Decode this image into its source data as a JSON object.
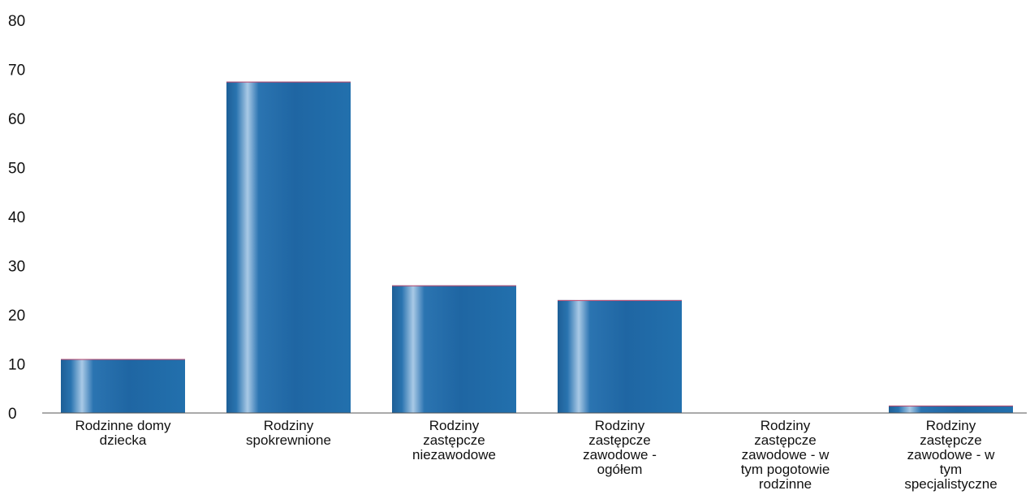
{
  "chart_data": {
    "type": "bar",
    "categories": [
      [
        "Rodzinne domy",
        "dziecka"
      ],
      [
        "Rodziny",
        "spokrewnione"
      ],
      [
        "Rodziny",
        "zastępcze",
        "niezawodowe"
      ],
      [
        "Rodziny",
        "zastępcze",
        "zawodowe -",
        "ogółem"
      ],
      [
        "Rodziny",
        "zastępcze",
        "zawodowe - w",
        "tym pogotowie",
        "rodzinne"
      ],
      [
        "Rodziny",
        "zastępcze",
        "zawodowe - w",
        "tym",
        "specjalistyczne"
      ]
    ],
    "values": [
      11,
      67.5,
      26,
      23,
      0,
      1.5
    ],
    "ylim": [
      0,
      80
    ],
    "yticks": [
      "0",
      "10",
      "20",
      "30",
      "40",
      "50",
      "60",
      "70",
      "80"
    ],
    "grid": false,
    "legend": "none",
    "colors": {
      "bar": "#1f6aa7",
      "bar_highlight": "#9fc3e2",
      "bar_top": "#c0466a",
      "axis": "#555555",
      "text": "#111111"
    },
    "title": "",
    "xlabel": "",
    "ylabel": ""
  }
}
